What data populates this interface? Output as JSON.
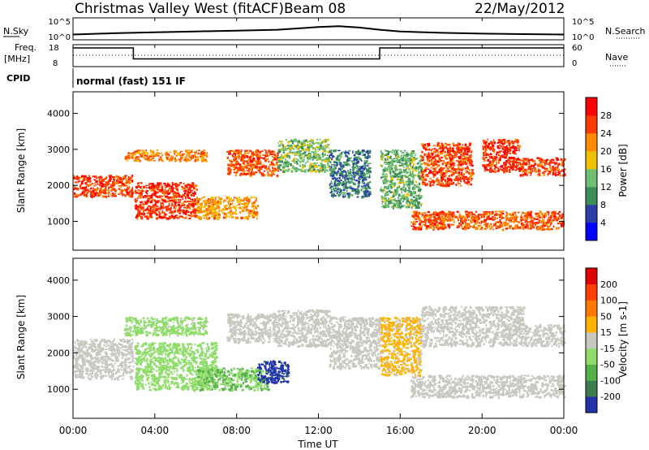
{
  "header": {
    "title": "Christmas Valley West (fitACF)",
    "beam": "Beam 08",
    "date": "22/May/2012"
  },
  "left_labels": {
    "nsky": "N.Sky",
    "freq_line1": "Freq.",
    "freq_line2": "[MHz]",
    "cpid": "CPID"
  },
  "right_labels": {
    "nsearch": "N.Search",
    "nave": "Nave"
  },
  "cpid_text": "normal (fast) 151 IF",
  "noise_panel": {
    "left_ticks": [
      "10^5",
      "10^0"
    ],
    "right_ticks": [
      "10^5",
      "10^0"
    ]
  },
  "freq_panel": {
    "left_ticks": [
      "18",
      "8"
    ],
    "right_ticks": [
      "60",
      "0"
    ]
  },
  "xaxis": {
    "label": "Time UT",
    "ticks": [
      "00:00",
      "04:00",
      "08:00",
      "12:00",
      "16:00",
      "20:00",
      "00:00"
    ]
  },
  "power_panel": {
    "ylabel": "Slant Range [km]",
    "yticks": [
      "4000",
      "3000",
      "2000",
      "1000"
    ],
    "colorbar_label": "Power [dB]",
    "colorbar_ticks": [
      "28",
      "24",
      "20",
      "16",
      "12",
      "8",
      "4"
    ],
    "colors": [
      "#0000ff",
      "#2a3fa8",
      "#3d8f5a",
      "#6fbf73",
      "#f2c200",
      "#ff8c00",
      "#ff3a00",
      "#ff0000"
    ]
  },
  "velocity_panel": {
    "ylabel": "Slant Range [km]",
    "yticks": [
      "4000",
      "3000",
      "2000",
      "1000"
    ],
    "colorbar_label": "Velocity [m s-1]",
    "colorbar_ticks": [
      "200",
      "100",
      "50",
      "15",
      "-15",
      "-50",
      "-100",
      "-200"
    ],
    "colors": [
      "#2233aa",
      "#3c7d4f",
      "#55b04a",
      "#8fdc6b",
      "#c8c8c0",
      "#ffb300",
      "#ff7a00",
      "#ff4000",
      "#e00000"
    ]
  },
  "chart_data": [
    {
      "type": "line",
      "name": "noise",
      "x_range_hours": [
        0,
        24
      ],
      "ylim_log10": [
        0,
        5
      ],
      "x": [
        0,
        2,
        4,
        6,
        8,
        10,
        12,
        13,
        14,
        15,
        16,
        18,
        20,
        22,
        24
      ],
      "y": [
        1.2,
        1.5,
        1.7,
        1.9,
        2.1,
        2.3,
        2.9,
        3.1,
        2.8,
        2.3,
        1.9,
        1.6,
        1.4,
        1.3,
        1.2
      ]
    },
    {
      "type": "line",
      "name": "frequency",
      "x_range_hours": [
        0,
        24
      ],
      "ylim": [
        8,
        18
      ],
      "x": [
        0,
        2.95,
        2.95,
        15.0,
        15.0,
        24
      ],
      "y": [
        16.5,
        16.5,
        11.5,
        11.5,
        16.5,
        16.5
      ]
    },
    {
      "type": "heatmap",
      "name": "power",
      "x_range_hours": [
        0,
        24
      ],
      "ylim": [
        200,
        4600
      ],
      "value_label": "Power [dB]",
      "vmin": 0,
      "vmax": 32,
      "regions": [
        {
          "x": [
            0,
            2.9
          ],
          "y": [
            1700,
            2300
          ],
          "v": 26
        },
        {
          "x": [
            3.0,
            6.0
          ],
          "y": [
            1100,
            2100
          ],
          "v": 27
        },
        {
          "x": [
            2.5,
            6.5
          ],
          "y": [
            2700,
            3000
          ],
          "v": 23
        },
        {
          "x": [
            6.0,
            9.0
          ],
          "y": [
            1100,
            1700
          ],
          "v": 21
        },
        {
          "x": [
            7.5,
            10.0
          ],
          "y": [
            2300,
            3000
          ],
          "v": 25
        },
        {
          "x": [
            10.0,
            12.5
          ],
          "y": [
            2400,
            3300
          ],
          "v": 14
        },
        {
          "x": [
            12.5,
            14.5
          ],
          "y": [
            1700,
            3000
          ],
          "v": 9
        },
        {
          "x": [
            15.0,
            17.0
          ],
          "y": [
            1400,
            3000
          ],
          "v": 13
        },
        {
          "x": [
            16.5,
            24.0
          ],
          "y": [
            800,
            1300
          ],
          "v": 25
        },
        {
          "x": [
            17.0,
            19.5
          ],
          "y": [
            2000,
            3200
          ],
          "v": 26
        },
        {
          "x": [
            20.0,
            21.8
          ],
          "y": [
            2400,
            3300
          ],
          "v": 27
        },
        {
          "x": [
            21.8,
            24.0
          ],
          "y": [
            2300,
            2800
          ],
          "v": 26
        }
      ]
    },
    {
      "type": "heatmap",
      "name": "velocity",
      "x_range_hours": [
        0,
        24
      ],
      "ylim": [
        200,
        4600
      ],
      "value_label": "Velocity [m s-1]",
      "vmin": -250,
      "vmax": 250,
      "regions": [
        {
          "x": [
            0,
            2.9
          ],
          "y": [
            1300,
            2400
          ],
          "v": 0
        },
        {
          "x": [
            3.0,
            7.0
          ],
          "y": [
            1000,
            2300
          ],
          "v": -60
        },
        {
          "x": [
            2.5,
            6.5
          ],
          "y": [
            2500,
            3000
          ],
          "v": -45
        },
        {
          "x": [
            6.0,
            9.5
          ],
          "y": [
            1000,
            1600
          ],
          "v": -80
        },
        {
          "x": [
            7.5,
            10.0
          ],
          "y": [
            2300,
            3100
          ],
          "v": 0
        },
        {
          "x": [
            9.0,
            10.5
          ],
          "y": [
            1200,
            1800
          ],
          "v": -210
        },
        {
          "x": [
            10.0,
            12.5
          ],
          "y": [
            2200,
            3200
          ],
          "v": 5
        },
        {
          "x": [
            12.5,
            15.0
          ],
          "y": [
            1600,
            3000
          ],
          "v": 0
        },
        {
          "x": [
            15.0,
            17.0
          ],
          "y": [
            1400,
            3000
          ],
          "v": 40
        },
        {
          "x": [
            16.5,
            24.0
          ],
          "y": [
            800,
            1400
          ],
          "v": 0
        },
        {
          "x": [
            17.0,
            22.0
          ],
          "y": [
            2200,
            3300
          ],
          "v": 0
        },
        {
          "x": [
            21.8,
            24.0
          ],
          "y": [
            2200,
            2800
          ],
          "v": 0
        }
      ]
    }
  ]
}
